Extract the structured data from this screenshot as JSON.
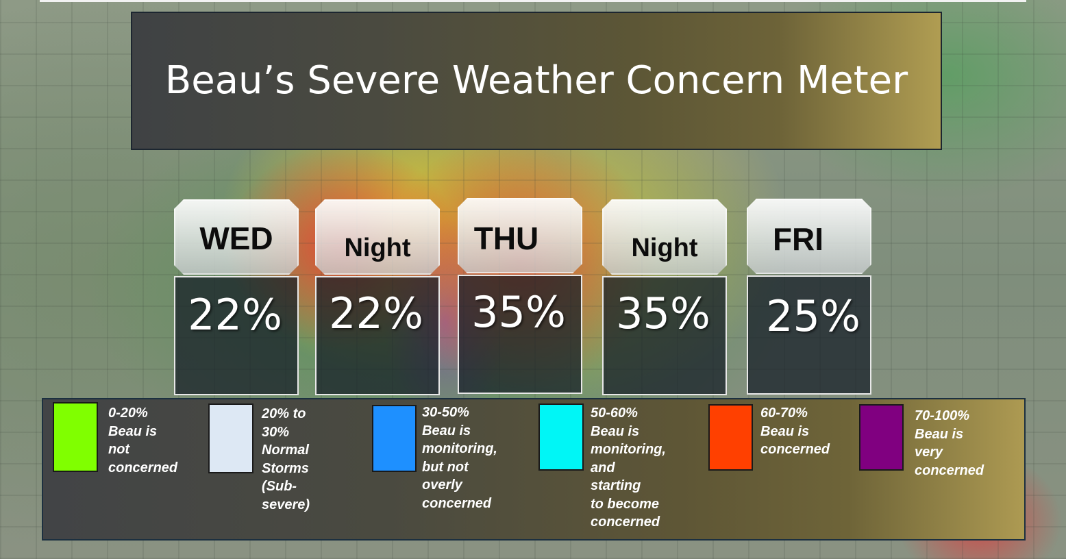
{
  "title": "Beau’s Severe Weather Concern Meter",
  "days": [
    {
      "label": "WED",
      "value": "22%"
    },
    {
      "label": "Night",
      "value": "22%"
    },
    {
      "label": "THU",
      "value": "35%"
    },
    {
      "label": "Night",
      "value": "35%"
    },
    {
      "label": "FRI",
      "value": "25%"
    }
  ],
  "legend": [
    {
      "color": "#80ff00",
      "text": "0-20%\nBeau is\nnot\nconcerned"
    },
    {
      "color": "#dde8f4",
      "text": "20% to 30%\nNormal\nStorms\n(Sub-severe)"
    },
    {
      "color": "#1e90ff",
      "text": "30-50%\nBeau is\nmonitoring,\nbut not overly\nconcerned"
    },
    {
      "color": "#00f6f6",
      "text": "50-60%\nBeau is\nmonitoring,\nand starting\nto become\nconcerned"
    },
    {
      "color": "#ff4000",
      "text": "60-70%\nBeau is\nconcerned"
    },
    {
      "color": "#800080",
      "text": "70-100%\nBeau is very\nconcerned"
    }
  ]
}
